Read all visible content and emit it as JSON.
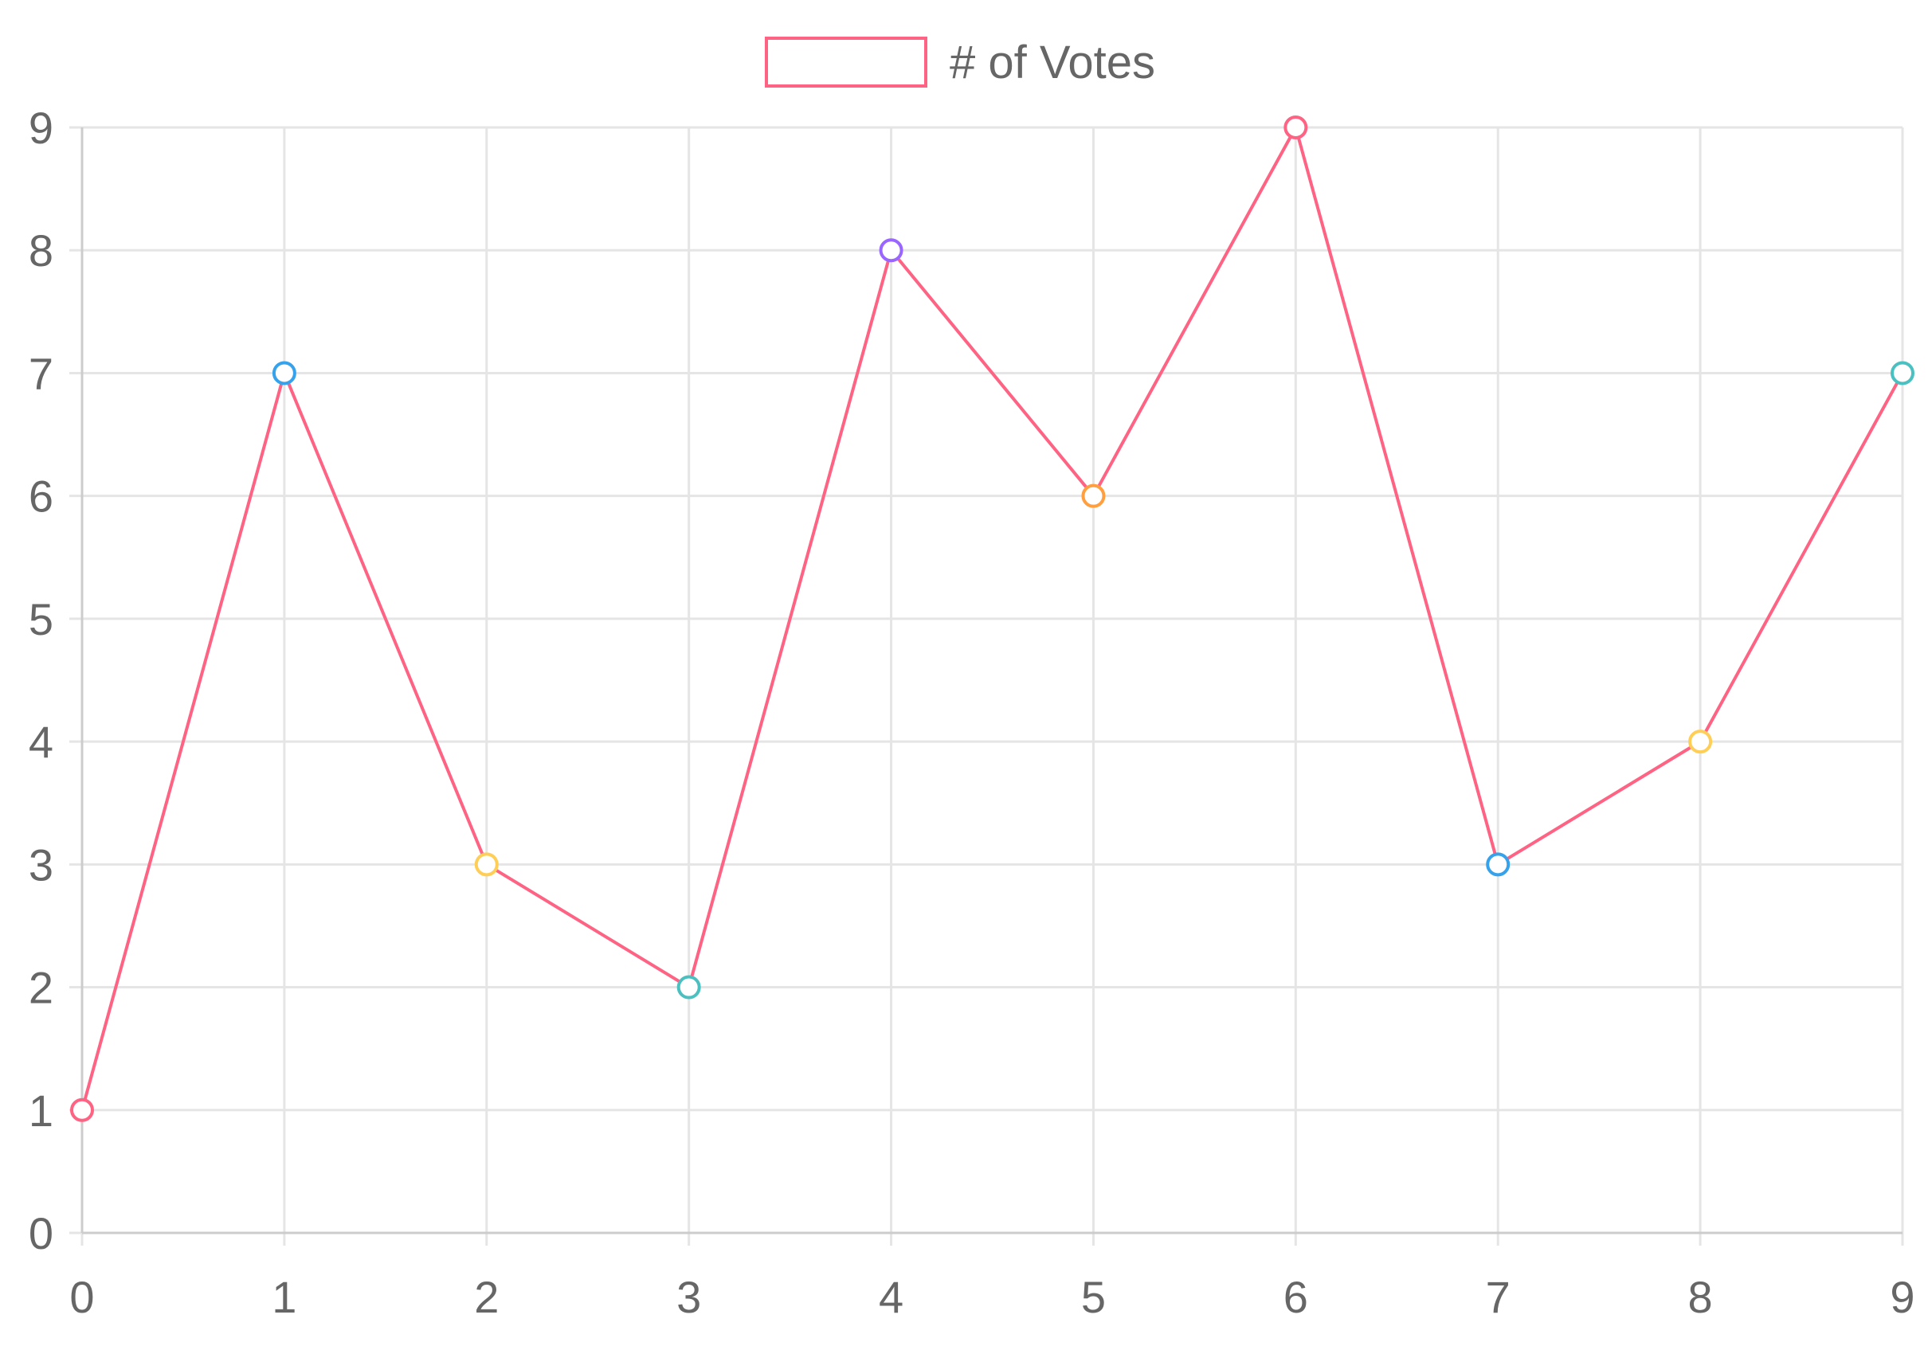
{
  "chart_data": {
    "type": "line",
    "x": [
      0,
      1,
      2,
      3,
      4,
      5,
      6,
      7,
      8,
      9
    ],
    "series": [
      {
        "name": "# of Votes",
        "values": [
          1,
          7,
          3,
          2,
          8,
          6,
          9,
          3,
          4,
          7
        ],
        "line_color": "#ff6384",
        "point_colors": [
          "#ff6384",
          "#36a2eb",
          "#ffce56",
          "#4bc0c0",
          "#9966ff",
          "#ff9f40",
          "#ff6384",
          "#36a2eb",
          "#ffce56",
          "#4bc0c0"
        ]
      }
    ],
    "x_ticks": [
      "0",
      "1",
      "2",
      "3",
      "4",
      "5",
      "6",
      "7",
      "8",
      "9"
    ],
    "y_ticks": [
      "0",
      "1",
      "2",
      "3",
      "4",
      "5",
      "6",
      "7",
      "8",
      "9"
    ],
    "xlim": [
      0,
      9
    ],
    "ylim": [
      0,
      9
    ],
    "grid": true,
    "legend_position": "top",
    "colors": {
      "grid": "#e5e5e5",
      "axis": "#cccccc",
      "text": "#666666"
    }
  }
}
